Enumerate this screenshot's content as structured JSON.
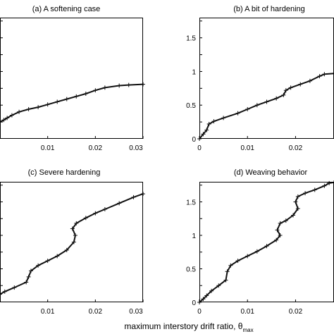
{
  "xlabel": "maximum interstory drift ratio, θ",
  "xlabel_subscript": "max",
  "chart_data": [
    {
      "type": "line",
      "title": "(a) A softening case",
      "xlim": [
        0,
        0.03
      ],
      "ylim": [
        0,
        1.8
      ],
      "x_tick_labels": [
        "0.01",
        "0.02",
        "0.03"
      ],
      "y_tick_labels": [],
      "grid": false,
      "series": [
        {
          "x": [
            0,
            0.0008,
            0.0015,
            0.0025,
            0.004,
            0.006,
            0.008,
            0.01,
            0.012,
            0.014,
            0.016,
            0.018,
            0.02,
            0.022,
            0.025,
            0.027,
            0.03
          ],
          "y": [
            0.25,
            0.28,
            0.31,
            0.35,
            0.4,
            0.44,
            0.47,
            0.51,
            0.55,
            0.59,
            0.63,
            0.67,
            0.72,
            0.76,
            0.79,
            0.8,
            0.81
          ]
        }
      ]
    },
    {
      "type": "line",
      "title": "(b) A bit of hardening",
      "xlim": [
        0,
        0.028
      ],
      "ylim": [
        0,
        1.8
      ],
      "x_tick_labels": [
        "0",
        "0.01",
        "0.02"
      ],
      "y_tick_labels": [
        "0",
        "0.5",
        "1",
        "1.5"
      ],
      "grid": false,
      "series": [
        {
          "x": [
            0,
            0.0008,
            0.0015,
            0.002,
            0.003,
            0.005,
            0.008,
            0.01,
            0.012,
            0.014,
            0.016,
            0.0175,
            0.018,
            0.019,
            0.021,
            0.023,
            0.025,
            0.026,
            0.028
          ],
          "y": [
            0,
            0.07,
            0.13,
            0.22,
            0.26,
            0.31,
            0.38,
            0.44,
            0.5,
            0.55,
            0.6,
            0.65,
            0.72,
            0.76,
            0.81,
            0.86,
            0.93,
            0.96,
            0.97
          ]
        }
      ]
    },
    {
      "type": "line",
      "title": "(c) Severe hardening",
      "xlim": [
        0,
        0.03
      ],
      "ylim": [
        0,
        1.8
      ],
      "x_tick_labels": [
        "0.01",
        "0.02",
        "0.03"
      ],
      "y_tick_labels": [],
      "grid": false,
      "series": [
        {
          "x": [
            0,
            0.001,
            0.003,
            0.0055,
            0.006,
            0.0065,
            0.008,
            0.01,
            0.012,
            0.014,
            0.0155,
            0.0158,
            0.0152,
            0.016,
            0.018,
            0.02,
            0.022,
            0.025,
            0.028,
            0.03
          ],
          "y": [
            0.12,
            0.16,
            0.22,
            0.3,
            0.38,
            0.47,
            0.55,
            0.62,
            0.69,
            0.78,
            0.9,
            1.0,
            1.1,
            1.18,
            1.26,
            1.33,
            1.39,
            1.48,
            1.57,
            1.62
          ]
        }
      ]
    },
    {
      "type": "line",
      "title": "(d) Weaving behavior",
      "xlim": [
        0,
        0.028
      ],
      "ylim": [
        0,
        1.8
      ],
      "x_tick_labels": [
        "0",
        "0.01",
        "0.02"
      ],
      "y_tick_labels": [
        "0",
        "0.5",
        "1",
        "1.5"
      ],
      "grid": false,
      "series": [
        {
          "x": [
            0,
            0.0008,
            0.0015,
            0.0025,
            0.004,
            0.0055,
            0.0058,
            0.0065,
            0.008,
            0.01,
            0.012,
            0.014,
            0.016,
            0.0168,
            0.0162,
            0.0168,
            0.018,
            0.0195,
            0.0205,
            0.02,
            0.0205,
            0.022,
            0.024,
            0.026,
            0.027,
            0.028
          ],
          "y": [
            0,
            0.05,
            0.1,
            0.17,
            0.25,
            0.33,
            0.46,
            0.55,
            0.62,
            0.69,
            0.76,
            0.84,
            0.93,
            1.0,
            1.08,
            1.18,
            1.22,
            1.3,
            1.4,
            1.5,
            1.58,
            1.63,
            1.68,
            1.74,
            1.78,
            1.79
          ]
        }
      ]
    }
  ]
}
